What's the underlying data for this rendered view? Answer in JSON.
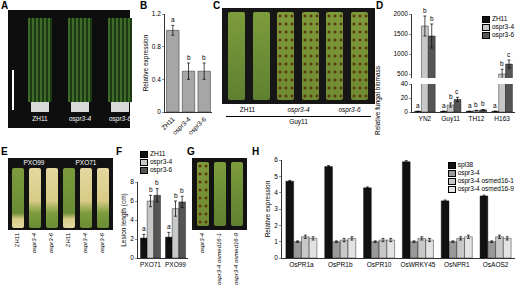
{
  "chart_data": [
    {
      "panel": "B",
      "type": "bar",
      "categories": [
        "ZH11",
        "ospr3-4",
        "ospr3-6"
      ],
      "values": [
        1.0,
        0.5,
        0.5
      ],
      "errors": [
        0.06,
        0.1,
        0.1
      ],
      "letters": [
        "a",
        "b",
        "b"
      ],
      "color": "#a6a6a6",
      "y_label": "Relative expression",
      "ylim": [
        0,
        1.2
      ],
      "yticks": [
        0,
        0.4,
        0.8,
        1.2
      ]
    },
    {
      "panel": "D",
      "type": "bar",
      "categories": [
        "YN2",
        "Guy11",
        "TH12",
        "H163"
      ],
      "series": [
        {
          "name": "ZH11",
          "color": "#111111",
          "values": [
            1,
            1,
            1,
            1
          ],
          "errors": [
            0.2,
            0.3,
            0.2,
            0.3
          ],
          "letters": [
            "a",
            "a",
            "a",
            "a"
          ]
        },
        {
          "name": "ospr3-4",
          "color": "#c8c8c8",
          "values": [
            1700,
            10,
            2,
            500
          ],
          "errors": [
            250,
            3,
            0.4,
            120
          ],
          "letters": [
            "b",
            "b",
            "b",
            "b"
          ]
        },
        {
          "name": "ospr3-6",
          "color": "#555555",
          "values": [
            1450,
            18,
            3,
            750
          ],
          "errors": [
            300,
            3,
            0.5,
            100
          ],
          "letters": [
            "b",
            "c",
            "b",
            "c"
          ]
        }
      ],
      "y_label": "Relative fungal biomass",
      "segments": [
        {
          "ylim": [
            0,
            40
          ],
          "yticks": [
            0,
            20,
            40
          ]
        },
        {
          "ylim": [
            400,
            2000
          ],
          "yticks": [
            500,
            1000,
            1500,
            2000
          ]
        }
      ],
      "legend": "top-right"
    },
    {
      "panel": "F",
      "type": "bar",
      "categories": [
        "PXO71",
        "PXO99"
      ],
      "series": [
        {
          "name": "ZH11",
          "color": "#111111",
          "values": [
            2.1,
            2.2
          ],
          "errors": [
            0.4,
            0.5
          ],
          "letters": [
            "a",
            "a"
          ]
        },
        {
          "name": "ospr3-4",
          "color": "#c8c8c8",
          "values": [
            6.0,
            5.2
          ],
          "errors": [
            0.6,
            0.8
          ],
          "letters": [
            "b",
            "b"
          ]
        },
        {
          "name": "ospr3-6",
          "color": "#555555",
          "values": [
            6.6,
            5.9
          ],
          "errors": [
            0.7,
            0.6
          ],
          "letters": [
            "b",
            "b"
          ]
        }
      ],
      "y_label": "Lesion length (cm)",
      "ylim": [
        0,
        8
      ],
      "yticks": [
        0,
        2,
        4,
        6,
        8
      ],
      "legend": "top-left"
    },
    {
      "panel": "H",
      "type": "bar",
      "categories": [
        "OsPR1a",
        "OsPR1b",
        "OsPR10",
        "OsWRKY45",
        "OsNPR1",
        "OsAOS2"
      ],
      "series": [
        {
          "name": "spl38",
          "color": "#111111",
          "values": [
            4.7,
            5.6,
            4.3,
            5.9,
            3.5,
            3.8
          ],
          "errors": [
            0.05,
            0.06,
            0.05,
            0.06,
            0.05,
            0.05
          ]
        },
        {
          "name": "ospr3-4",
          "color": "#999999",
          "values": [
            1.0,
            1.0,
            1.0,
            1.0,
            1.0,
            1.0
          ],
          "errors": [
            0.05,
            0.05,
            0.05,
            0.05,
            0.05,
            0.05
          ]
        },
        {
          "name": "ospr3-4 osmed16-1",
          "color": "#c8c8c8",
          "values": [
            1.3,
            1.1,
            1.1,
            1.2,
            1.2,
            1.3
          ],
          "errors": [
            0.1,
            0.1,
            0.1,
            0.1,
            0.1,
            0.1
          ]
        },
        {
          "name": "ospr3-4 osmed16-9",
          "color": "#e3e3e3",
          "values": [
            1.2,
            1.2,
            1.1,
            1.1,
            1.3,
            1.2
          ],
          "errors": [
            0.1,
            0.1,
            0.1,
            0.1,
            0.1,
            0.1
          ]
        }
      ],
      "y_label": "Relative expression",
      "ylim": [
        0,
        6
      ],
      "yticks": [
        0,
        1,
        2,
        3,
        4,
        5,
        6
      ],
      "legend": "top-right"
    }
  ],
  "images": [
    {
      "panel": "A",
      "labels": [
        "ZH11",
        "ospr3-4",
        "ospr3-6"
      ]
    },
    {
      "panel": "C",
      "labels": [
        "ZH11",
        "ospr3-4",
        "ospr3-6"
      ],
      "caption": "Guy11"
    },
    {
      "panel": "E",
      "groups": [
        "PXO99",
        "PXO71"
      ],
      "labels": [
        "ZH11",
        "ospr3-4",
        "ospr3-6",
        "ZH11",
        "ospr3-4",
        "ospr3-6"
      ]
    },
    {
      "panel": "G",
      "labels": [
        "ospr3-4",
        "ospr3-4 osmed16-1",
        "ospr3-4 osmed16-9"
      ]
    }
  ]
}
